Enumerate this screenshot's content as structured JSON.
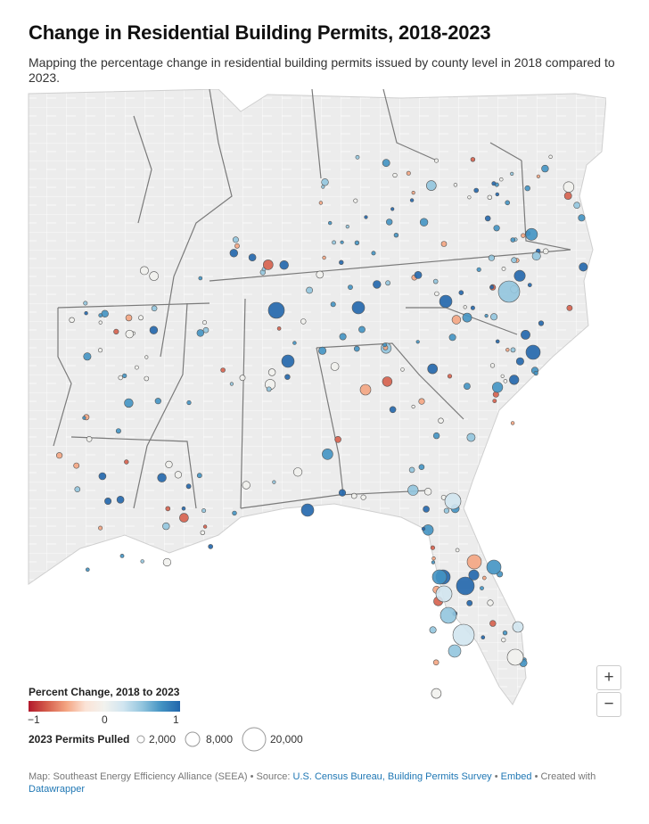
{
  "title": "Change in Residential Building Permits, 2018-2023",
  "subtitle": "Mapping the percentage change in residential building permits issued by county level in 2018 compared to 2023.",
  "zoom": {
    "in_label": "+",
    "out_label": "−"
  },
  "legend": {
    "color_title": "Percent Change, 2018 to 2023",
    "min_label": "−1",
    "mid_label": "0",
    "max_label": "1",
    "size_title": "2023 Permits Pulled",
    "size_labels": [
      "2,000",
      "8,000",
      "20,000"
    ]
  },
  "footer": {
    "prefix": "Map: Southeast Energy Efficiency Alliance (SEEA) • Source: ",
    "source_link": "U.S. Census Bureau, Building Permits Survey",
    "separator": " • ",
    "embed_link": "Embed",
    "created_text": " • Created with ",
    "datawrapper_link": "Datawrapper"
  },
  "colors": {
    "neg_strong": "#b2182b",
    "neg_light": "#f4a582",
    "neutral": "#f2f2ee",
    "pos_light": "#92c5de",
    "pos_strong": "#2166ac",
    "land": "#ececec",
    "county_border": "#ffffff",
    "state_border": "#777777"
  }
}
